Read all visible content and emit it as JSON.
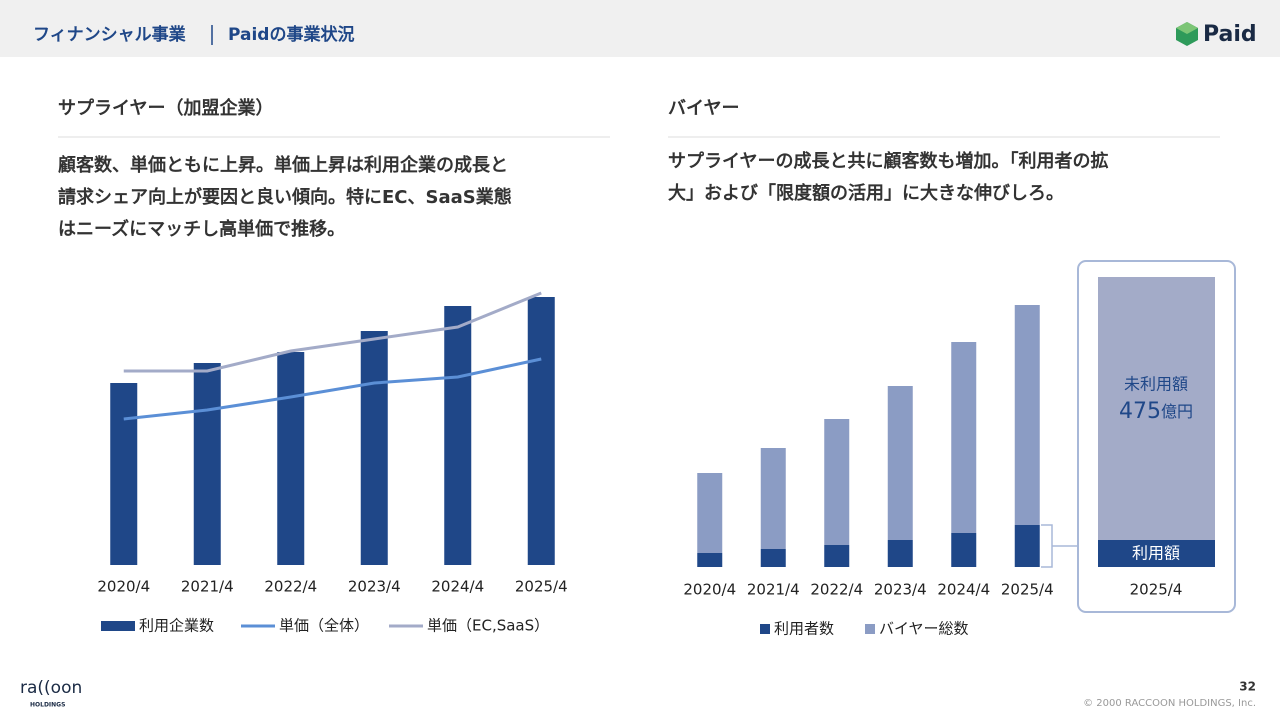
{
  "header": {
    "section": "フィナンシャル事業",
    "title": "Paidの事業状況",
    "logo": "Paid"
  },
  "left": {
    "heading": "サプライヤー（加盟企業）",
    "lines": [
      "顧客数、単価ともに上昇。単価上昇は利用企業の成長と",
      "請求シェア向上が要因と良い傾向。特にEC、SaaS業態",
      "はニーズにマッチし高単価で推移。"
    ]
  },
  "right": {
    "heading": "バイヤー",
    "lines": [
      "サプライヤーの成長と共に顧客数も増加。「利用者の拡",
      "大」および「限度額の活用」に大きな伸びしろ。"
    ]
  },
  "chart_data": [
    {
      "type": "combo",
      "categories": [
        "2020/4",
        "2021/4",
        "2022/4",
        "2023/4",
        "2024/4",
        "2025/4"
      ],
      "ylim": [
        0,
        300
      ],
      "series": [
        {
          "name": "利用企業数",
          "kind": "bar",
          "color": "#1f4788",
          "values": [
            182,
            202,
            213,
            234,
            259,
            268
          ]
        },
        {
          "name": "単価（全体）",
          "kind": "line",
          "color": "#5b8fd6",
          "values": [
            146,
            155,
            168,
            182,
            188,
            206
          ]
        },
        {
          "name": "単価（EC,SaaS）",
          "kind": "line",
          "color": "#a3abc8",
          "values": [
            194,
            194,
            214,
            226,
            238,
            272
          ]
        }
      ]
    },
    {
      "type": "stacked",
      "categories": [
        "2020/4",
        "2021/4",
        "2022/4",
        "2023/4",
        "2024/4",
        "2025/4"
      ],
      "ylim": [
        0,
        300
      ],
      "series": [
        {
          "name": "利用者数",
          "color": "#1f4788",
          "values": [
            14,
            18,
            22,
            27,
            34,
            42
          ]
        },
        {
          "name": "バイヤー総数",
          "color": "#8b9cc4",
          "values": [
            80,
            101,
            126,
            154,
            191,
            220
          ]
        }
      ]
    }
  ],
  "annotation": {
    "category": "2025/4",
    "unused": "未利用額",
    "amount": "475",
    "unit": "億円",
    "used": "利用額"
  },
  "footer": {
    "page": "32",
    "copyright": "© 2000 RACCOON HOLDINGS, Inc.",
    "brand": "ra((oon",
    "brand_sub": "HOLDINGS"
  }
}
